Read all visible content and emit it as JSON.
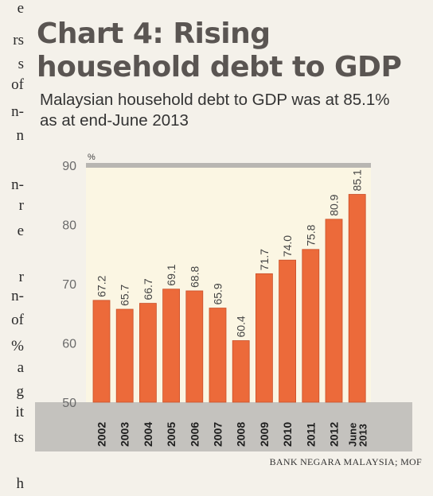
{
  "article_margin": {
    "letters": [
      "e",
      "rs",
      "s",
      "of",
      "n-",
      "n",
      "n-",
      "r",
      "e",
      "r",
      "n-",
      "of",
      "%",
      "a",
      "g",
      "it",
      "ts",
      "h"
    ]
  },
  "chart_data": {
    "type": "bar",
    "title": "Chart 4: Rising household debt to GDP",
    "subtitle": "Malaysian household debt to GDP was at 85.1% as at end-June 2013",
    "source": "BANK NEGARA MALAYSIA; MOF",
    "ylabel": "%",
    "ylim": [
      50,
      90
    ],
    "yticks": [
      50,
      60,
      70,
      80,
      90
    ],
    "categories": [
      "2002",
      "2003",
      "2004",
      "2005",
      "2006",
      "2007",
      "2008",
      "2009",
      "2010",
      "2011",
      "2012",
      "June 2013"
    ],
    "values": [
      67.2,
      65.7,
      66.7,
      69.1,
      68.8,
      65.9,
      60.4,
      71.7,
      74.0,
      75.8,
      80.9,
      85.1
    ],
    "value_labels": [
      "67.2",
      "65.7",
      "66.7",
      "69.1",
      "68.8",
      "65.9",
      "60.4",
      "71.7",
      "74.0",
      "75.8",
      "80.9",
      "85.1"
    ],
    "grid": false,
    "colors": {
      "bar_fill": "#ec6a3a",
      "bar_edge": "#c9502a",
      "plot_background": "#fbf6e3",
      "axis_band": "#c4c2be",
      "top_rule": "#b8b6b2",
      "text": "#333333"
    }
  }
}
